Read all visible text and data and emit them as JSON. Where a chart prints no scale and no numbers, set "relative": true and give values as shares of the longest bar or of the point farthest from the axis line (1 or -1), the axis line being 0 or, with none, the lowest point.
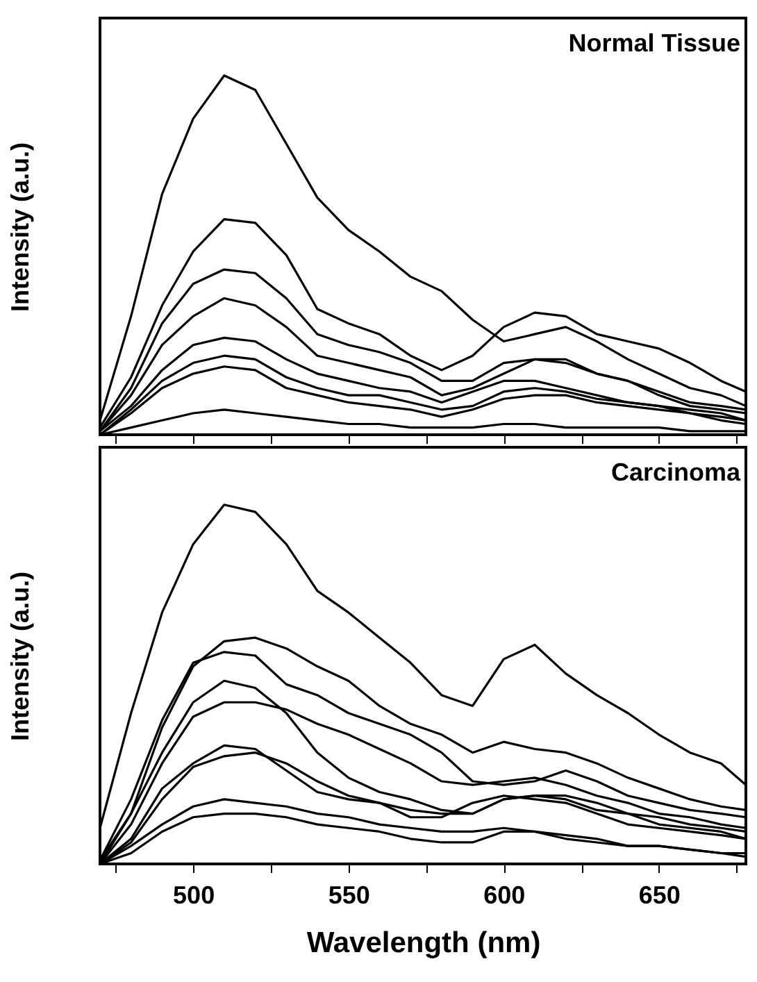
{
  "chart_data": [
    {
      "type": "line",
      "title": "Normal Tissue",
      "ylabel": "Intensity (a.u.)",
      "relative": true,
      "tick_labels": false,
      "xlim": [
        470,
        678
      ],
      "xticks": [
        {
          "value": 475,
          "label": null
        },
        500,
        {
          "value": 525,
          "label": null
        },
        550,
        {
          "value": 575,
          "label": null
        },
        600,
        {
          "value": 625,
          "label": null
        },
        650,
        {
          "value": 675,
          "label": null
        }
      ],
      "x": [
        470,
        480,
        490,
        500,
        510,
        520,
        530,
        540,
        550,
        560,
        570,
        580,
        590,
        600,
        610,
        620,
        630,
        640,
        650,
        660,
        670,
        678
      ],
      "series": [
        {
          "color": "#000000",
          "values": [
            0.04,
            0.33,
            0.67,
            0.88,
            1.0,
            0.96,
            0.81,
            0.66,
            0.57,
            0.51,
            0.44,
            0.4,
            0.32,
            0.26,
            0.28,
            0.3,
            0.26,
            0.21,
            0.17,
            0.13,
            0.11,
            0.08
          ]
        },
        {
          "color": "#000000",
          "values": [
            0.02,
            0.16,
            0.36,
            0.51,
            0.6,
            0.59,
            0.5,
            0.35,
            0.31,
            0.28,
            0.22,
            0.18,
            0.22,
            0.3,
            0.34,
            0.33,
            0.28,
            0.26,
            0.24,
            0.2,
            0.15,
            0.12
          ]
        },
        {
          "color": "#000000",
          "values": [
            0.01,
            0.13,
            0.31,
            0.42,
            0.46,
            0.45,
            0.38,
            0.28,
            0.25,
            0.23,
            0.2,
            0.15,
            0.15,
            0.2,
            0.21,
            0.21,
            0.17,
            0.15,
            0.12,
            0.09,
            0.08,
            0.07
          ]
        },
        {
          "color": "#000000",
          "values": [
            0.01,
            0.11,
            0.25,
            0.33,
            0.38,
            0.36,
            0.3,
            0.22,
            0.2,
            0.18,
            0.16,
            0.11,
            0.13,
            0.17,
            0.21,
            0.2,
            0.17,
            0.15,
            0.11,
            0.08,
            0.07,
            0.06
          ]
        },
        {
          "color": "#000000",
          "values": [
            0.01,
            0.08,
            0.18,
            0.25,
            0.27,
            0.26,
            0.21,
            0.17,
            0.15,
            0.13,
            0.12,
            0.09,
            0.12,
            0.15,
            0.15,
            0.13,
            0.11,
            0.09,
            0.08,
            0.07,
            0.06,
            0.04
          ]
        },
        {
          "color": "#000000",
          "values": [
            0.0,
            0.07,
            0.15,
            0.2,
            0.22,
            0.21,
            0.16,
            0.13,
            0.11,
            0.11,
            0.09,
            0.07,
            0.08,
            0.12,
            0.13,
            0.12,
            0.1,
            0.09,
            0.08,
            0.06,
            0.05,
            0.04
          ]
        },
        {
          "color": "#000000",
          "values": [
            0.0,
            0.06,
            0.13,
            0.17,
            0.19,
            0.18,
            0.13,
            0.11,
            0.09,
            0.08,
            0.07,
            0.05,
            0.07,
            0.1,
            0.11,
            0.11,
            0.09,
            0.08,
            0.07,
            0.06,
            0.04,
            0.03
          ]
        },
        {
          "color": "#000000",
          "values": [
            0.0,
            0.02,
            0.04,
            0.06,
            0.07,
            0.06,
            0.05,
            0.04,
            0.03,
            0.03,
            0.02,
            0.02,
            0.02,
            0.03,
            0.03,
            0.02,
            0.02,
            0.02,
            0.02,
            0.01,
            0.01,
            0.01
          ]
        }
      ]
    },
    {
      "type": "line",
      "title": "Carcinoma",
      "ylabel": "Intensity (a.u.)",
      "xlabel": "Wavelength (nm)",
      "relative": true,
      "tick_labels": "x",
      "xlim": [
        470,
        678
      ],
      "xticks": [
        {
          "value": 475,
          "label": null
        },
        500,
        {
          "value": 525,
          "label": null
        },
        550,
        {
          "value": 575,
          "label": null
        },
        600,
        {
          "value": 625,
          "label": null
        },
        650,
        {
          "value": 675,
          "label": null
        }
      ],
      "x": [
        470,
        480,
        490,
        500,
        510,
        520,
        530,
        540,
        550,
        560,
        570,
        580,
        590,
        600,
        610,
        620,
        630,
        640,
        650,
        660,
        670,
        678
      ],
      "series": [
        {
          "color": "#000000",
          "values": [
            0.1,
            0.42,
            0.7,
            0.89,
            1.0,
            0.98,
            0.89,
            0.76,
            0.7,
            0.63,
            0.56,
            0.47,
            0.44,
            0.57,
            0.61,
            0.53,
            0.47,
            0.42,
            0.36,
            0.31,
            0.28,
            0.22
          ]
        },
        {
          "color": "#000000",
          "values": [
            0.01,
            0.14,
            0.38,
            0.55,
            0.62,
            0.63,
            0.6,
            0.55,
            0.51,
            0.44,
            0.39,
            0.36,
            0.31,
            0.34,
            0.32,
            0.31,
            0.28,
            0.24,
            0.21,
            0.18,
            0.16,
            0.15
          ]
        },
        {
          "color": "#000000",
          "values": [
            0.01,
            0.18,
            0.4,
            0.56,
            0.59,
            0.58,
            0.5,
            0.47,
            0.42,
            0.39,
            0.36,
            0.31,
            0.23,
            0.22,
            0.23,
            0.26,
            0.23,
            0.19,
            0.17,
            0.15,
            0.14,
            0.13
          ]
        },
        {
          "color": "#000000",
          "values": [
            0.0,
            0.14,
            0.31,
            0.45,
            0.51,
            0.49,
            0.42,
            0.31,
            0.24,
            0.2,
            0.18,
            0.15,
            0.14,
            0.18,
            0.19,
            0.19,
            0.17,
            0.14,
            0.11,
            0.1,
            0.09,
            0.07
          ]
        },
        {
          "color": "#000000",
          "values": [
            0.0,
            0.11,
            0.28,
            0.41,
            0.45,
            0.45,
            0.43,
            0.39,
            0.36,
            0.32,
            0.28,
            0.23,
            0.22,
            0.23,
            0.24,
            0.22,
            0.19,
            0.17,
            0.14,
            0.13,
            0.11,
            0.1
          ]
        },
        {
          "color": "#000000",
          "values": [
            0.0,
            0.07,
            0.21,
            0.28,
            0.33,
            0.32,
            0.26,
            0.2,
            0.18,
            0.17,
            0.15,
            0.14,
            0.14,
            0.18,
            0.19,
            0.18,
            0.15,
            0.14,
            0.13,
            0.11,
            0.1,
            0.09
          ]
        },
        {
          "color": "#000000",
          "values": [
            0.0,
            0.06,
            0.18,
            0.27,
            0.3,
            0.31,
            0.28,
            0.23,
            0.19,
            0.17,
            0.13,
            0.13,
            0.17,
            0.19,
            0.18,
            0.17,
            0.14,
            0.11,
            0.1,
            0.09,
            0.08,
            0.07
          ]
        },
        {
          "color": "#000000",
          "values": [
            0.0,
            0.05,
            0.11,
            0.16,
            0.18,
            0.17,
            0.16,
            0.14,
            0.13,
            0.11,
            0.1,
            0.09,
            0.09,
            0.1,
            0.09,
            0.08,
            0.07,
            0.05,
            0.05,
            0.04,
            0.03,
            0.03
          ]
        },
        {
          "color": "#000000",
          "values": [
            0.0,
            0.03,
            0.09,
            0.13,
            0.14,
            0.14,
            0.13,
            0.11,
            0.1,
            0.09,
            0.07,
            0.06,
            0.06,
            0.09,
            0.09,
            0.07,
            0.06,
            0.05,
            0.05,
            0.04,
            0.03,
            0.02
          ]
        }
      ]
    }
  ]
}
